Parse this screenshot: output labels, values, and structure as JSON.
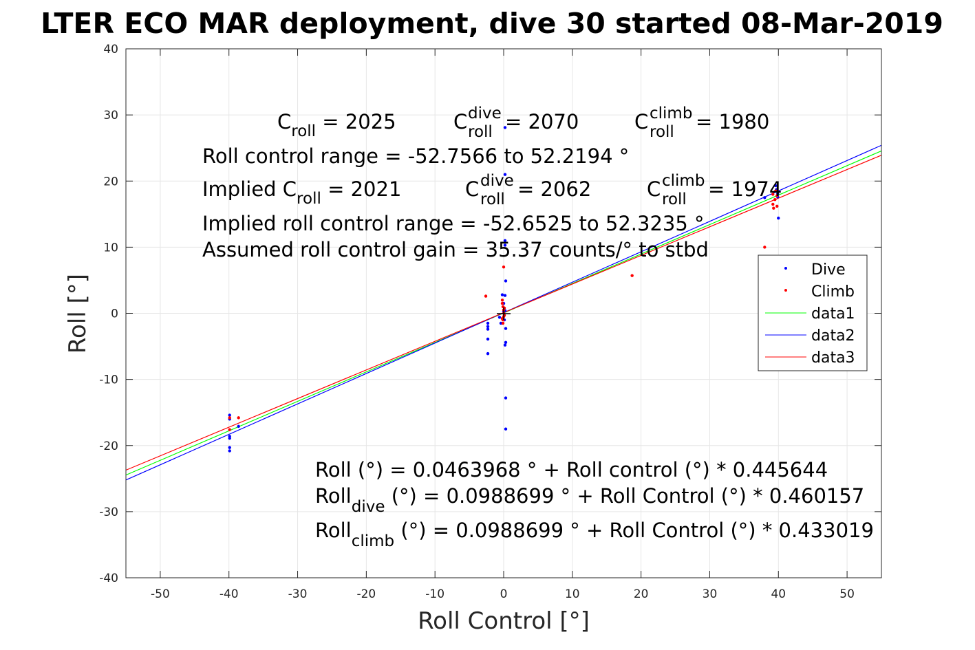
{
  "chart_data": {
    "type": "scatter",
    "title": "LTER ECO MAR deployment, dive 30 started 08-Mar-2019",
    "xlabel": "Roll Control [°]",
    "ylabel": "Roll [°]",
    "xlim": [
      -55,
      55
    ],
    "ylim": [
      -40,
      40
    ],
    "xticks": [
      -50,
      -40,
      -30,
      -20,
      -10,
      0,
      10,
      20,
      30,
      40,
      50
    ],
    "yticks": [
      -40,
      -30,
      -20,
      -10,
      0,
      10,
      20,
      30,
      40
    ],
    "grid": true,
    "legend_position": "right",
    "legend": [
      "Dive",
      "Climb",
      "data1",
      "data2",
      "data3"
    ],
    "series": [
      {
        "name": "Dive",
        "kind": "points",
        "color": "#0000ff",
        "points": [
          [
            -39.9,
            -15.4
          ],
          [
            -39.9,
            -16.0
          ],
          [
            -39.9,
            -18.6
          ],
          [
            -39.9,
            -18.9
          ],
          [
            -39.9,
            -20.3
          ],
          [
            -39.9,
            -20.8
          ],
          [
            -38.6,
            -17.1
          ],
          [
            -2.3,
            -1.5
          ],
          [
            -2.3,
            -2.0
          ],
          [
            -2.3,
            -2.4
          ],
          [
            -2.3,
            -3.9
          ],
          [
            -2.3,
            -6.1
          ],
          [
            -0.6,
            -0.6
          ],
          [
            -0.4,
            -1.5
          ],
          [
            -0.2,
            2.8
          ],
          [
            0.0,
            1.5
          ],
          [
            0.0,
            0.3
          ],
          [
            0.2,
            28.1
          ],
          [
            0.2,
            21.0
          ],
          [
            0.2,
            11.0
          ],
          [
            0.2,
            10.3
          ],
          [
            0.3,
            4.9
          ],
          [
            0.2,
            2.7
          ],
          [
            0.2,
            0.4
          ],
          [
            0.1,
            -1.0
          ],
          [
            0.3,
            -2.3
          ],
          [
            0.3,
            -4.4
          ],
          [
            0.2,
            -4.8
          ],
          [
            0.3,
            -12.8
          ],
          [
            0.3,
            -17.5
          ],
          [
            38.0,
            17.5
          ],
          [
            39.6,
            19.3
          ],
          [
            39.7,
            18.7
          ],
          [
            39.9,
            18.1
          ],
          [
            39.9,
            17.6
          ],
          [
            40.0,
            14.4
          ]
        ]
      },
      {
        "name": "Climb",
        "kind": "points",
        "color": "#ff0000",
        "points": [
          [
            -39.9,
            -15.8
          ],
          [
            -39.9,
            -17.6
          ],
          [
            -38.6,
            -15.8
          ],
          [
            -2.6,
            2.6
          ],
          [
            0.0,
            7.0
          ],
          [
            -0.2,
            2.0
          ],
          [
            -0.2,
            1.5
          ],
          [
            -0.1,
            1.0
          ],
          [
            0.0,
            0.5
          ],
          [
            0.0,
            0.0
          ],
          [
            0.0,
            -0.5
          ],
          [
            -0.1,
            -1.0
          ],
          [
            -0.1,
            -1.5
          ],
          [
            0.1,
            -0.3
          ],
          [
            0.1,
            0.8
          ],
          [
            -0.2,
            -0.8
          ],
          [
            18.7,
            5.7
          ],
          [
            38.0,
            10.0
          ],
          [
            39.2,
            18.0
          ],
          [
            39.2,
            16.5
          ],
          [
            39.3,
            15.9
          ],
          [
            39.5,
            17.2
          ],
          [
            39.6,
            18.5
          ],
          [
            39.8,
            17.8
          ],
          [
            39.8,
            16.2
          ]
        ]
      },
      {
        "name": "data1",
        "kind": "line",
        "color": "#00ff00",
        "points": [
          [
            -55,
            -24.46
          ],
          [
            55,
            24.56
          ]
        ]
      },
      {
        "name": "data2",
        "kind": "line",
        "color": "#0000ff",
        "points": [
          [
            -55,
            -25.21
          ],
          [
            55,
            25.41
          ]
        ]
      },
      {
        "name": "data3",
        "kind": "line",
        "color": "#ff0000",
        "points": [
          [
            -55,
            -23.72
          ],
          [
            55,
            23.91
          ]
        ]
      }
    ],
    "annotations": {
      "croll": {
        "main": "C",
        "sub": "roll",
        "rest": " = 2025"
      },
      "cdive": {
        "main": "C",
        "sup": "dive",
        "sub": "roll",
        "rest": " = 2070"
      },
      "cclimb": {
        "main": "C",
        "sup": "climb",
        "sub": "roll",
        "rest": " = 1980"
      },
      "range": "Roll control range = -52.7566 to 52.2194 °",
      "implied_croll": {
        "prefix": "Implied C",
        "sub": "roll",
        "rest": " = 2021"
      },
      "implied_cdive": {
        "main": "C",
        "sup": "dive",
        "sub": "roll",
        "rest": " = 2062"
      },
      "implied_cclimb": {
        "main": "C",
        "sup": "climb",
        "sub": "roll",
        "rest": " = 1974"
      },
      "implied_range": "Implied roll control range = -52.6525 to 52.3235 °",
      "gain": "Assumed roll control gain = 35.37 counts/° to stbd",
      "fit_all": "Roll (°) = 0.0463968 ° + Roll control (°) * 0.445644",
      "fit_dive": {
        "main": "Roll",
        "sub": "dive",
        "rest": " (°) = 0.0988699 ° + Roll Control (°) * 0.460157"
      },
      "fit_climb": {
        "main": "Roll",
        "sub": "climb",
        "rest": " (°) = 0.0988699 ° + Roll Control (°) * 0.433019"
      }
    }
  }
}
